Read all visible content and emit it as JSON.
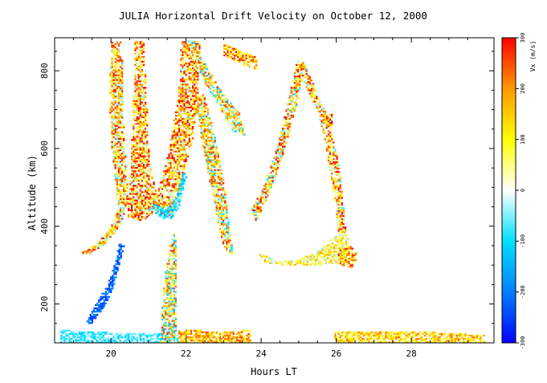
{
  "chart_data": {
    "type": "heatmap",
    "title": "JULIA Horizontal Drift Velocity on October 12, 2000",
    "xlabel": "Hours LT",
    "ylabel": "Altitude (km)",
    "xlim": [
      18.5,
      30.2
    ],
    "ylim": [
      100,
      885
    ],
    "x_ticks": [
      20,
      22,
      24,
      26,
      28
    ],
    "x_tick_labels": [
      "20",
      "22",
      "24",
      "26",
      "28"
    ],
    "y_ticks": [
      200,
      400,
      600,
      800
    ],
    "y_tick_labels": [
      "200",
      "400",
      "600",
      "800"
    ],
    "grid": false,
    "colorbar": {
      "label": "Vx (m/s)",
      "range": [
        -300,
        300
      ],
      "ticks": [
        -300,
        -200,
        -100,
        0,
        100,
        200,
        300
      ],
      "tick_labels": [
        "-300",
        "-200",
        "-100",
        "0",
        "100",
        "200",
        "300"
      ],
      "colors": [
        "#0000ff",
        "#0080ff",
        "#00e0ff",
        "#ffffff",
        "#ffff00",
        "#ff9900",
        "#ff0000"
      ]
    },
    "regions": [
      {
        "name": "upward-plume-left-strand",
        "kind": "poly",
        "vx_mean": 120,
        "vx_spread": 190,
        "points": [
          [
            19.15,
            330
          ],
          [
            19.6,
            355
          ],
          [
            19.95,
            390
          ],
          [
            20.15,
            440
          ],
          [
            20.1,
            510
          ],
          [
            20.0,
            600
          ],
          [
            19.95,
            700
          ],
          [
            19.95,
            790
          ],
          [
            20.0,
            875
          ],
          [
            20.25,
            875
          ],
          [
            20.3,
            790
          ],
          [
            20.3,
            700
          ],
          [
            20.35,
            610
          ],
          [
            20.4,
            520
          ],
          [
            20.45,
            460
          ],
          [
            20.2,
            395
          ],
          [
            19.8,
            350
          ],
          [
            19.35,
            325
          ]
        ]
      },
      {
        "name": "upward-plume-main-body",
        "kind": "poly",
        "vx_mean": 140,
        "vx_spread": 190,
        "points": [
          [
            20.4,
            420
          ],
          [
            20.75,
            410
          ],
          [
            21.2,
            435
          ],
          [
            21.5,
            420
          ],
          [
            21.8,
            470
          ],
          [
            21.95,
            540
          ],
          [
            22.15,
            620
          ],
          [
            22.3,
            720
          ],
          [
            22.35,
            875
          ],
          [
            21.85,
            875
          ],
          [
            21.8,
            760
          ],
          [
            21.6,
            640
          ],
          [
            21.45,
            560
          ],
          [
            21.2,
            480
          ],
          [
            21.0,
            560
          ],
          [
            20.95,
            680
          ],
          [
            20.9,
            790
          ],
          [
            20.85,
            875
          ],
          [
            20.6,
            875
          ],
          [
            20.6,
            780
          ],
          [
            20.55,
            660
          ],
          [
            20.5,
            540
          ]
        ]
      },
      {
        "name": "plume-lower-edge-cyan",
        "kind": "poly",
        "vx_mean": -85,
        "vx_spread": 70,
        "points": [
          [
            20.95,
            440
          ],
          [
            21.3,
            420
          ],
          [
            21.6,
            415
          ],
          [
            21.8,
            450
          ],
          [
            22.0,
            530
          ],
          [
            21.9,
            535
          ],
          [
            21.7,
            470
          ],
          [
            21.45,
            440
          ],
          [
            21.15,
            455
          ]
        ]
      },
      {
        "name": "upper-streak-23h",
        "kind": "poly",
        "vx_mean": 80,
        "vx_spread": 210,
        "points": [
          [
            22.15,
            875
          ],
          [
            22.5,
            815
          ],
          [
            22.95,
            740
          ],
          [
            23.4,
            690
          ],
          [
            23.55,
            630
          ],
          [
            23.25,
            640
          ],
          [
            22.85,
            705
          ],
          [
            22.4,
            780
          ],
          [
            22.0,
            875
          ]
        ]
      },
      {
        "name": "upper-streak-top-right",
        "kind": "poly",
        "vx_mean": 150,
        "vx_spread": 160,
        "points": [
          [
            23.0,
            870
          ],
          [
            23.45,
            850
          ],
          [
            23.9,
            830
          ],
          [
            23.85,
            800
          ],
          [
            23.4,
            815
          ],
          [
            22.95,
            840
          ]
        ]
      },
      {
        "name": "descending-band-22-23h",
        "kind": "poly",
        "vx_mean": 90,
        "vx_spread": 200,
        "points": [
          [
            22.45,
            740
          ],
          [
            22.7,
            650
          ],
          [
            22.9,
            560
          ],
          [
            23.05,
            470
          ],
          [
            23.15,
            380
          ],
          [
            23.25,
            330
          ],
          [
            23.1,
            320
          ],
          [
            22.9,
            370
          ],
          [
            22.75,
            450
          ],
          [
            22.55,
            540
          ],
          [
            22.35,
            640
          ],
          [
            22.25,
            720
          ]
        ]
      },
      {
        "name": "plume-24-26h-left-arm",
        "kind": "poly",
        "vx_mean": 110,
        "vx_spread": 210,
        "points": [
          [
            23.7,
            440
          ],
          [
            23.95,
            480
          ],
          [
            24.2,
            540
          ],
          [
            24.45,
            620
          ],
          [
            24.7,
            720
          ],
          [
            24.95,
            830
          ],
          [
            25.15,
            815
          ],
          [
            24.9,
            700
          ],
          [
            24.65,
            610
          ],
          [
            24.35,
            520
          ],
          [
            24.05,
            450
          ],
          [
            23.85,
            410
          ]
        ]
      },
      {
        "name": "plume-24-26h-right-arm",
        "kind": "poly",
        "vx_mean": 130,
        "vx_spread": 200,
        "points": [
          [
            25.1,
            820
          ],
          [
            25.35,
            770
          ],
          [
            25.55,
            720
          ],
          [
            25.75,
            680
          ],
          [
            25.9,
            700
          ],
          [
            25.85,
            640
          ],
          [
            26.05,
            560
          ],
          [
            26.15,
            470
          ],
          [
            26.25,
            380
          ],
          [
            26.05,
            370
          ],
          [
            25.95,
            460
          ],
          [
            25.8,
            550
          ],
          [
            25.65,
            630
          ],
          [
            25.5,
            690
          ],
          [
            25.25,
            740
          ],
          [
            25.05,
            790
          ]
        ]
      },
      {
        "name": "plume-24-26h-base",
        "kind": "poly",
        "vx_mean": 70,
        "vx_spread": 120,
        "points": [
          [
            23.9,
            330
          ],
          [
            24.4,
            310
          ],
          [
            24.9,
            310
          ],
          [
            25.4,
            330
          ],
          [
            25.8,
            360
          ],
          [
            26.2,
            390
          ],
          [
            26.4,
            340
          ],
          [
            26.15,
            300
          ],
          [
            25.7,
            300
          ],
          [
            25.2,
            295
          ],
          [
            24.6,
            298
          ],
          [
            24.1,
            305
          ]
        ]
      },
      {
        "name": "plume-26h-tail",
        "kind": "poly",
        "vx_mean": 160,
        "vx_spread": 140,
        "points": [
          [
            26.0,
            335
          ],
          [
            26.35,
            350
          ],
          [
            26.55,
            320
          ],
          [
            26.4,
            290
          ],
          [
            26.1,
            295
          ]
        ]
      },
      {
        "name": "low-altitude-blue-streak",
        "kind": "poly",
        "vx_mean": -220,
        "vx_spread": 60,
        "points": [
          [
            19.3,
            155
          ],
          [
            19.6,
            200
          ],
          [
            19.9,
            250
          ],
          [
            20.1,
            310
          ],
          [
            20.2,
            355
          ],
          [
            20.35,
            350
          ],
          [
            20.2,
            300
          ],
          [
            20.05,
            240
          ],
          [
            19.8,
            190
          ],
          [
            19.45,
            145
          ]
        ]
      },
      {
        "name": "e-region-sporadic-cyan",
        "kind": "poly",
        "vx_mean": -70,
        "vx_spread": 60,
        "points": [
          [
            18.65,
            100
          ],
          [
            21.8,
            100
          ],
          [
            21.8,
            125
          ],
          [
            20.5,
            122
          ],
          [
            19.5,
            128
          ],
          [
            18.65,
            130
          ]
        ]
      },
      {
        "name": "e-region-band-left",
        "kind": "poly",
        "vx_mean": 150,
        "vx_spread": 120,
        "points": [
          [
            21.8,
            100
          ],
          [
            23.7,
            100
          ],
          [
            23.7,
            130
          ],
          [
            22.8,
            128
          ],
          [
            21.8,
            132
          ]
        ]
      },
      {
        "name": "e-region-band-right",
        "kind": "poly",
        "vx_mean": 120,
        "vx_spread": 110,
        "points": [
          [
            25.95,
            100
          ],
          [
            30.0,
            100
          ],
          [
            30.0,
            118
          ],
          [
            28.5,
            126
          ],
          [
            27.0,
            128
          ],
          [
            25.95,
            126
          ]
        ]
      },
      {
        "name": "vertical-column-21-5h",
        "kind": "poly",
        "vx_mean": 60,
        "vx_spread": 220,
        "points": [
          [
            21.3,
            100
          ],
          [
            21.7,
            100
          ],
          [
            21.75,
            360
          ],
          [
            21.65,
            380
          ],
          [
            21.45,
            300
          ],
          [
            21.35,
            200
          ]
        ]
      }
    ]
  }
}
